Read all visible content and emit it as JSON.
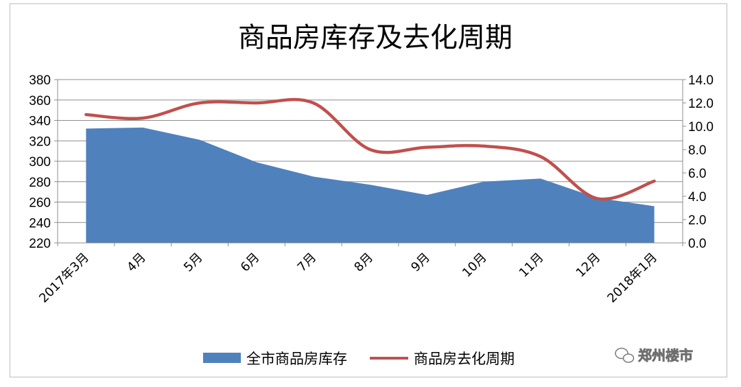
{
  "chart_data": {
    "type": "area",
    "title": "商品房库存及去化周期",
    "categories": [
      "2017年3月",
      "4月",
      "5月",
      "6月",
      "7月",
      "8月",
      "9月",
      "10月",
      "11月",
      "12月",
      "2018年1月"
    ],
    "y_left": {
      "ylim": [
        220,
        380
      ],
      "ticks": [
        220,
        240,
        260,
        280,
        300,
        320,
        340,
        360,
        380
      ]
    },
    "y_right": {
      "ylim": [
        0,
        14
      ],
      "ticks": [
        "0.0",
        "2.0",
        "4.0",
        "6.0",
        "8.0",
        "10.0",
        "12.0",
        "14.0"
      ]
    },
    "series": [
      {
        "name": "全市商品房库存",
        "type": "area",
        "axis": "left",
        "color": "#4f81bd",
        "values": [
          332,
          333,
          321,
          299,
          285,
          277,
          267,
          280,
          283,
          264,
          256
        ]
      },
      {
        "name": "商品房去化周期",
        "type": "line",
        "axis": "right",
        "color": "#c0504d",
        "values": [
          11.0,
          10.7,
          12.0,
          12.0,
          12.0,
          8.0,
          8.2,
          8.3,
          7.4,
          3.8,
          5.3
        ]
      }
    ],
    "grid": true,
    "legend": "bottom"
  },
  "watermark": {
    "text": "郑州楼市",
    "icon": "wechat-icon"
  }
}
